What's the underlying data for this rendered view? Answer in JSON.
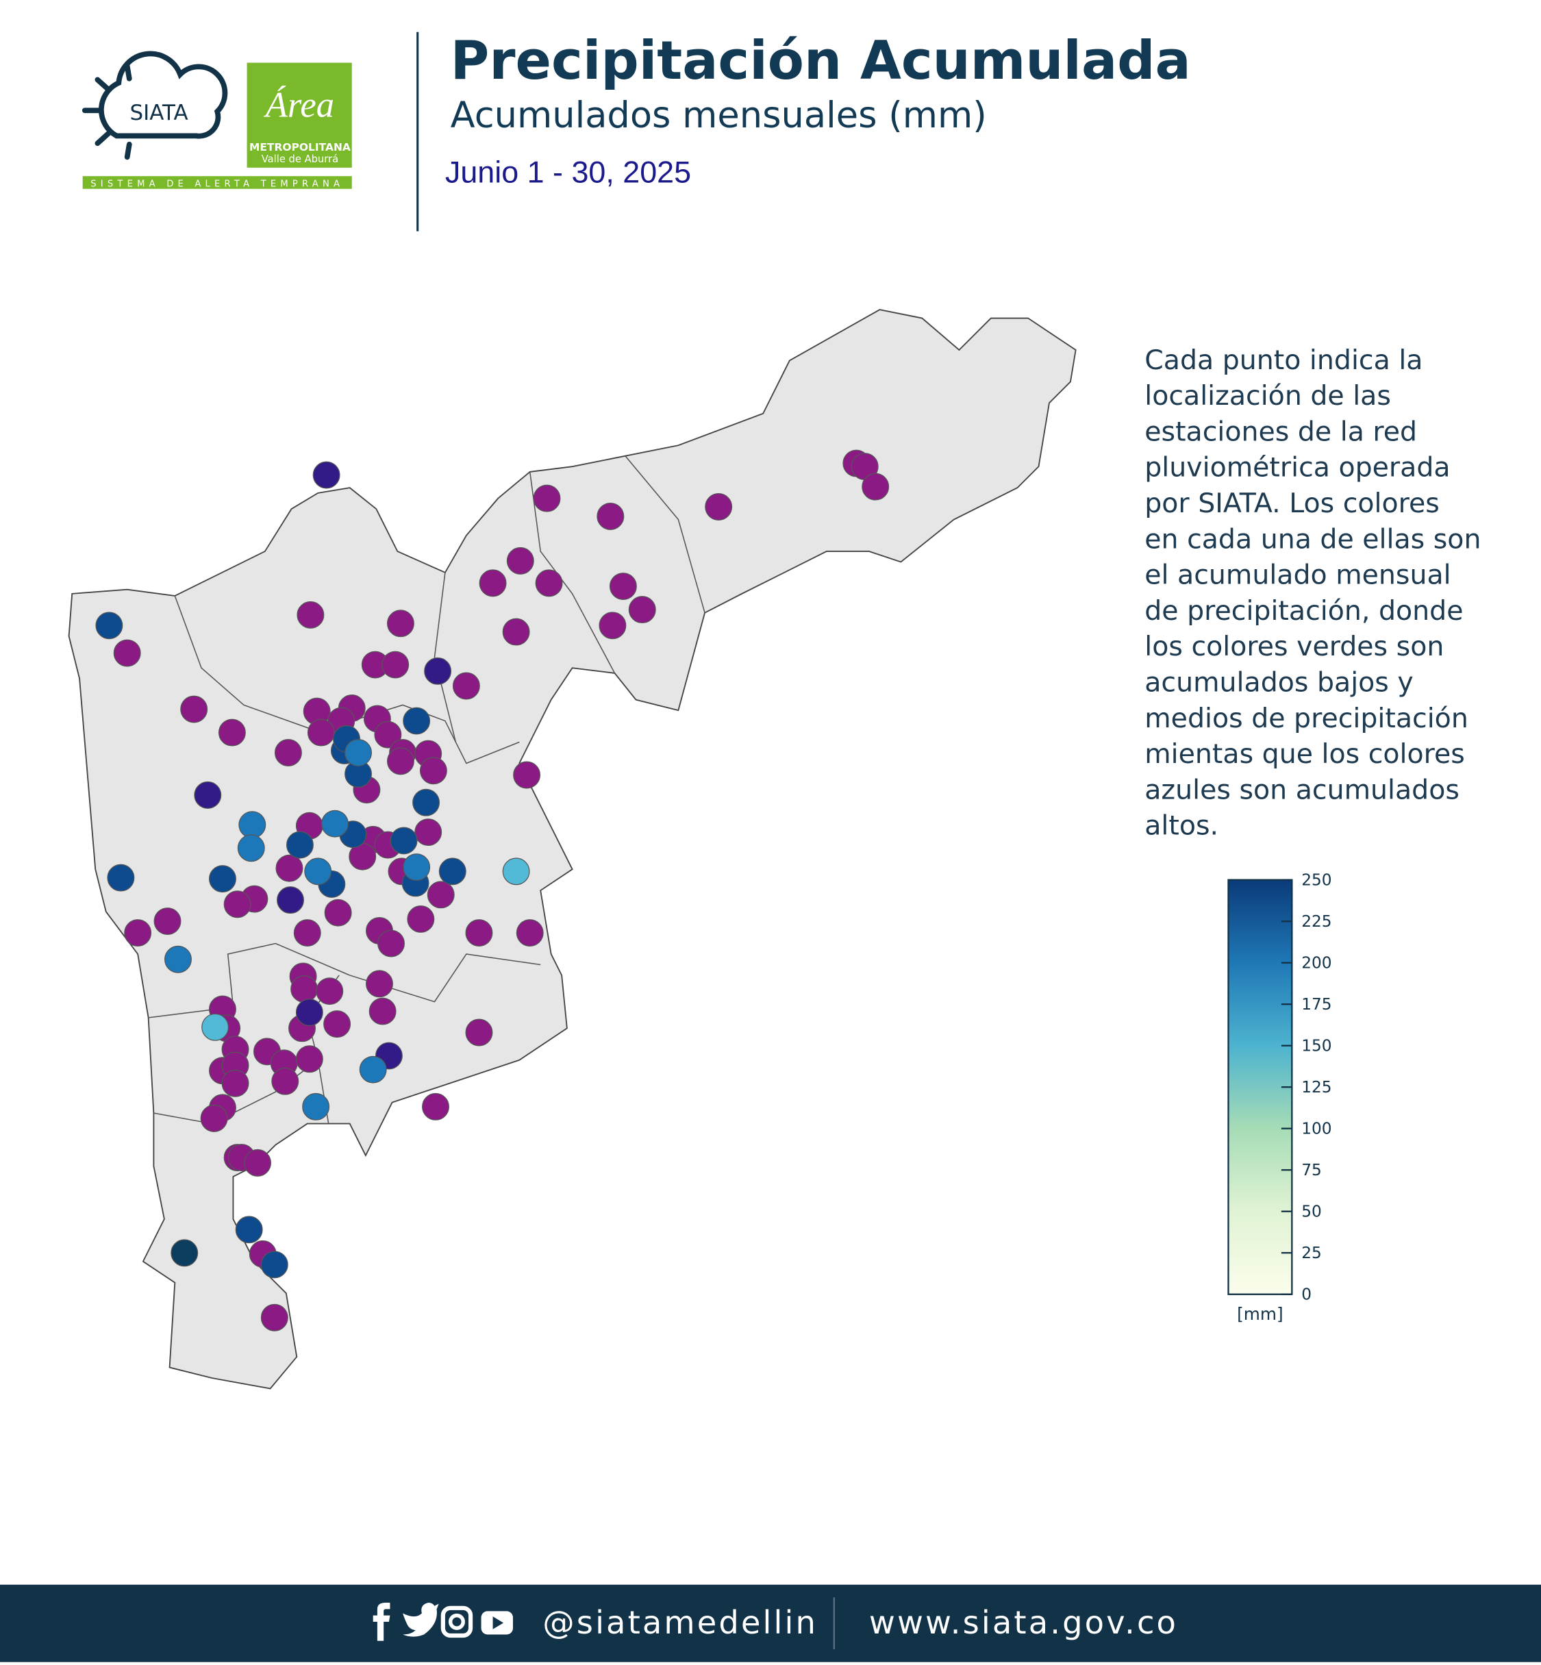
{
  "header": {
    "title": "Precipitación Acumulada",
    "subtitle": "Acumulados mensuales (mm)",
    "date": "Junio 1 - 30, 2025"
  },
  "logo": {
    "siata": "SIATA",
    "area": "Área",
    "metro": "METROPOLITANA",
    "valle": "Valle de Aburrá",
    "strip": "SISTEMA DE ALERTA TEMPRANA"
  },
  "description": [
    "Cada punto indica la",
    "localización de las",
    "estaciones de la red",
    "pluviométrica operada",
    "por SIATA. Los colores",
    "en cada una de ellas son",
    "el acumulado mensual",
    "de precipitación, donde",
    "los colores verdes son",
    "acumulados bajos y",
    "medios de precipitación",
    "mientas que los colores",
    "azules son acumulados",
    "altos."
  ],
  "colorbar": {
    "label": "[mm]",
    "ylim": [
      0,
      250
    ],
    "yticks": [
      0,
      25,
      50,
      75,
      100,
      125,
      150,
      175,
      200,
      225,
      250
    ],
    "stops": [
      {
        "value": 0,
        "color": "#fbfdeb"
      },
      {
        "value": 50,
        "color": "#e0f3d4"
      },
      {
        "value": 100,
        "color": "#a6dcb6"
      },
      {
        "value": 150,
        "color": "#4db3cf"
      },
      {
        "value": 200,
        "color": "#1f78b6"
      },
      {
        "value": 250,
        "color": "#0b3b7a"
      }
    ]
  },
  "stations": [
    {
      "color": "#8b1a85",
      "values": [
        275,
        275,
        275,
        275,
        275,
        275,
        275,
        275,
        275,
        275,
        275,
        275,
        275,
        275,
        275,
        275,
        275,
        275,
        275,
        275,
        275,
        275,
        275,
        275,
        275,
        275,
        275,
        275,
        275,
        275,
        275,
        275,
        275,
        275,
        275,
        275,
        275,
        275,
        275,
        275,
        275,
        275,
        275,
        275,
        275,
        275,
        275,
        275,
        275,
        275,
        275,
        275,
        275,
        275,
        275,
        275,
        275,
        275,
        275,
        275,
        275,
        275,
        275,
        275,
        275,
        275,
        275,
        275,
        275,
        275,
        275,
        275,
        275,
        275,
        275,
        275,
        275,
        275,
        275
      ]
    },
    {
      "color": "#321b86",
      "values": [
        260,
        260,
        260,
        260,
        260,
        260
      ]
    },
    {
      "color": "#0e4a8e",
      "values": [
        240,
        240,
        240,
        240,
        240,
        240,
        240,
        240,
        240,
        240,
        240,
        240,
        240,
        240,
        240,
        240
      ]
    },
    {
      "color": "#0b3d5e",
      "values": [
        250
      ]
    },
    {
      "color": "#1c78b8",
      "values": [
        200,
        200,
        200,
        200,
        200,
        200,
        200,
        200,
        200
      ]
    },
    {
      "color": "#52b9d6",
      "values": [
        160,
        160
      ]
    }
  ],
  "footer": {
    "handle": "@siatamedellin",
    "site": "www.siata.gov.co"
  }
}
